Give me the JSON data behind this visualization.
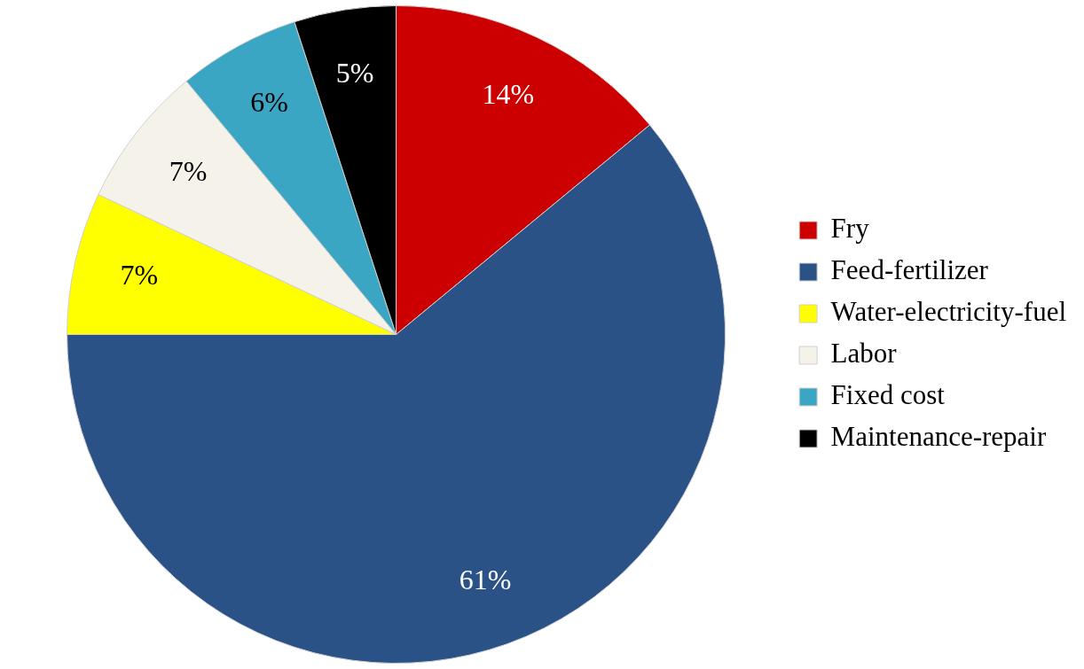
{
  "chart_data": {
    "type": "pie",
    "categories": [
      "Fry",
      "Feed-fertilizer",
      "Water-electricity-fuel",
      "Labor",
      "Fixed cost",
      "Maintenance-repair"
    ],
    "values": [
      14,
      61,
      7,
      7,
      6,
      5
    ],
    "colors": [
      "#cc0000",
      "#2a5286",
      "#ffff00",
      "#f5f2ea",
      "#3aa6c4",
      "#000000"
    ],
    "value_labels": [
      "14%",
      "61%",
      "7%",
      "7%",
      "6%",
      "5%"
    ],
    "legend": "right"
  }
}
